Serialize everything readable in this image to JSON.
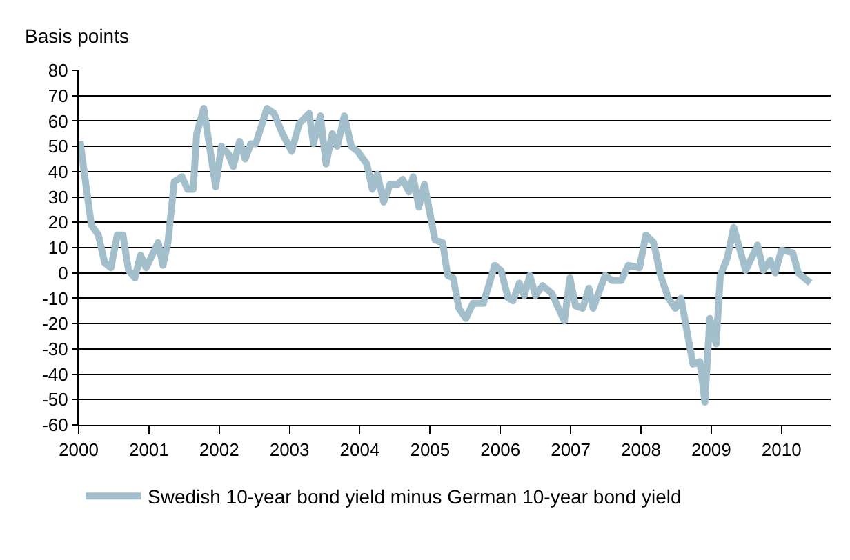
{
  "chart_data": {
    "type": "line",
    "ylabel": "Basis points",
    "x": [
      2000.02,
      2000.18,
      2000.28,
      2000.37,
      2000.46,
      2000.55,
      2000.63,
      2000.71,
      2000.8,
      2000.88,
      2000.96,
      2001.13,
      2001.2,
      2001.27,
      2001.36,
      2001.47,
      2001.55,
      2001.63,
      2001.68,
      2001.78,
      2001.95,
      2002.03,
      2002.13,
      2002.2,
      2002.29,
      2002.37,
      2002.45,
      2002.52,
      2002.68,
      2002.78,
      2002.9,
      2003.03,
      2003.14,
      2003.28,
      2003.34,
      2003.44,
      2003.52,
      2003.61,
      2003.68,
      2003.78,
      2003.88,
      2003.97,
      2004.1,
      2004.18,
      2004.25,
      2004.34,
      2004.43,
      2004.54,
      2004.61,
      2004.7,
      2004.76,
      2004.84,
      2004.92,
      2005.07,
      2005.18,
      2005.25,
      2005.33,
      2005.41,
      2005.51,
      2005.61,
      2005.76,
      2005.92,
      2006.01,
      2006.11,
      2006.18,
      2006.27,
      2006.34,
      2006.42,
      2006.5,
      2006.6,
      2006.73,
      2006.91,
      2006.99,
      2007.07,
      2007.17,
      2007.26,
      2007.32,
      2007.49,
      2007.59,
      2007.72,
      2007.82,
      2007.98,
      2008.07,
      2008.18,
      2008.28,
      2008.39,
      2008.49,
      2008.57,
      2008.74,
      2008.84,
      2008.91,
      2008.98,
      2009.07,
      2009.13,
      2009.23,
      2009.32,
      2009.49,
      2009.66,
      2009.74,
      2009.84,
      2009.91,
      2010.0,
      2010.16,
      2010.24,
      2010.41
    ],
    "series": [
      {
        "name": "Swedish 10-year bond yield minus German 10-year bond yield",
        "color": "#a4bfcc",
        "values": [
          52,
          19,
          15,
          4,
          2,
          15,
          15,
          1,
          -2,
          7,
          2,
          12,
          3,
          12,
          36,
          38,
          33,
          33,
          55,
          65,
          34,
          50,
          47,
          42,
          52,
          45,
          51,
          51,
          65,
          63,
          55,
          48,
          59,
          63,
          51,
          62,
          43,
          55,
          50,
          62,
          50,
          48,
          43,
          33,
          39,
          28,
          35,
          35,
          37,
          32,
          38,
          26,
          35,
          13,
          12,
          -1,
          -2,
          -14,
          -18,
          -12,
          -12,
          3,
          1,
          -10,
          -11,
          -4,
          -9,
          -1,
          -9,
          -5,
          -8,
          -19,
          -2,
          -13,
          -14,
          -6,
          -14,
          -1,
          -3,
          -3,
          3,
          2,
          15,
          12,
          -1,
          -10,
          -14,
          -10,
          -36,
          -35,
          -51,
          -18,
          -28,
          -1,
          6,
          18,
          1,
          11,
          1,
          5,
          0,
          9,
          8,
          0,
          -4
        ]
      }
    ],
    "xlim": [
      2000,
      2010.7
    ],
    "xticks": [
      2000,
      2001,
      2002,
      2003,
      2004,
      2005,
      2006,
      2007,
      2008,
      2009,
      2010
    ],
    "ylim": [
      -60,
      80
    ],
    "yticks": [
      -60,
      -50,
      -40,
      -30,
      -20,
      -10,
      0,
      10,
      20,
      30,
      40,
      50,
      60,
      70,
      80
    ],
    "grid": "y",
    "legend": "bottom",
    "marker": "none",
    "line_style": "solid"
  }
}
